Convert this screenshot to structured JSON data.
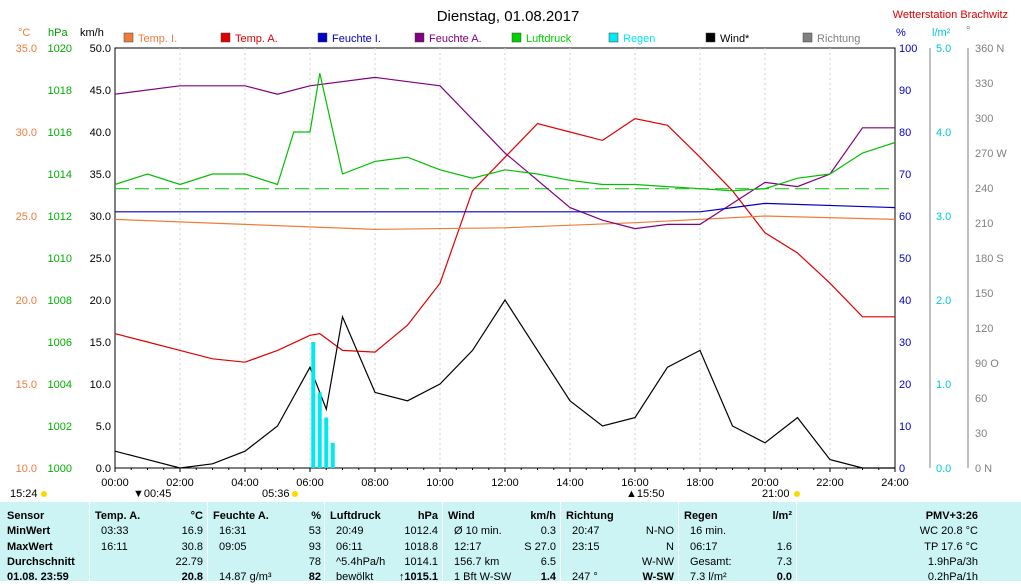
{
  "header": {
    "title": "Dienstag, 01.08.2017",
    "station": "Wetterstation Brachwitz"
  },
  "axes_units": {
    "temp": "°C",
    "pressure": "hPa",
    "wind": "km/h",
    "humidity": "%",
    "rain": "l/m²",
    "direction": "°"
  },
  "legend": [
    {
      "label": "Temp. I.",
      "color": "#f07c3c"
    },
    {
      "label": "Temp. A.",
      "color": "#e00000"
    },
    {
      "label": "Feuchte I.",
      "color": "#0000c8"
    },
    {
      "label": "Feuchte A.",
      "color": "#800080"
    },
    {
      "label": "Luftdruck",
      "color": "#00d000"
    },
    {
      "label": "Regen",
      "color": "#00e8f0"
    },
    {
      "label": "Wind*",
      "color": "#000000"
    },
    {
      "label": "Richtung",
      "color": "#808080"
    }
  ],
  "markers": {
    "start": "15:24",
    "sunrise": "05:36",
    "sunrise_prefix": "▼00:45",
    "transit": "▲15:50",
    "sunset": "21:00"
  },
  "chart_data": {
    "type": "line",
    "x_label_ticks": [
      "00:00",
      "02:00",
      "04:00",
      "06:00",
      "08:00",
      "10:00",
      "12:00",
      "14:00",
      "16:00",
      "18:00",
      "20:00",
      "22:00",
      "24:00"
    ],
    "xlim_hours": [
      0,
      24
    ],
    "y_axes": {
      "temp": {
        "range": [
          10,
          35
        ],
        "ticks": [
          "10.0",
          "15.0",
          "20.0",
          "25.0",
          "30.0",
          "35.0"
        ],
        "color": "#f07c3c"
      },
      "pressure": {
        "range": [
          1000,
          1020
        ],
        "ticks": [
          "1000",
          "1002",
          "1004",
          "1006",
          "1008",
          "1010",
          "1012",
          "1014",
          "1016",
          "1018",
          "1020"
        ],
        "color": "#00b000"
      },
      "wind": {
        "range": [
          0,
          50
        ],
        "ticks": [
          "0.0",
          "5.0",
          "10.0",
          "15.0",
          "20.0",
          "25.0",
          "30.0",
          "35.0",
          "40.0",
          "45.0",
          "50.0"
        ],
        "color": "#000000"
      },
      "humidity": {
        "range": [
          0,
          100
        ],
        "ticks": [
          "0",
          "10",
          "20",
          "30",
          "40",
          "50",
          "60",
          "70",
          "80",
          "90",
          "100"
        ],
        "color": "#0000c8"
      },
      "rain": {
        "range": [
          0,
          5
        ],
        "ticks": [
          "0.0",
          "1.0",
          "2.0",
          "3.0",
          "4.0",
          "5.0"
        ],
        "color": "#00c8d8"
      },
      "direction": {
        "range": [
          0,
          360
        ],
        "ticks": [
          "0 N",
          "30",
          "60",
          "90 O",
          "120",
          "150",
          "180 S",
          "210",
          "240",
          "270 W",
          "300",
          "330",
          "360 N"
        ],
        "color": "#808080"
      }
    },
    "series": [
      {
        "name": "Temp. A.",
        "axis": "temp",
        "color": "#e00000",
        "x": [
          0,
          1,
          2,
          3,
          4,
          5,
          6,
          6.3,
          7,
          8,
          9,
          10,
          11,
          12,
          13,
          14,
          15,
          16,
          17,
          18,
          19,
          20,
          21,
          22,
          23,
          24
        ],
        "y": [
          18,
          17.5,
          17,
          16.5,
          16.3,
          17,
          17.9,
          18,
          17,
          16.9,
          18.5,
          21,
          26.5,
          28.5,
          30.5,
          30,
          29.5,
          30.8,
          30.4,
          28.5,
          26.5,
          24,
          22.8,
          21,
          19,
          19
        ]
      },
      {
        "name": "Temp. I.",
        "axis": "temp",
        "color": "#f07c3c",
        "x": [
          0,
          4,
          8,
          12,
          16,
          20,
          24
        ],
        "y": [
          24.8,
          24.5,
          24.2,
          24.3,
          24.6,
          25,
          24.8
        ]
      },
      {
        "name": "Feuchte A.",
        "axis": "humidity",
        "color": "#800080",
        "x": [
          0,
          2,
          4,
          5,
          6,
          8,
          10,
          12,
          14,
          15,
          16,
          17,
          18,
          19,
          20,
          21,
          22,
          23,
          24
        ],
        "y": [
          89,
          91,
          91,
          89,
          91,
          93,
          91,
          75,
          62,
          59,
          57,
          58,
          58,
          63,
          68,
          67,
          70,
          81,
          81
        ]
      },
      {
        "name": "Feuchte I.",
        "axis": "humidity",
        "color": "#0000c8",
        "x": [
          0,
          12,
          18,
          19,
          20,
          24
        ],
        "y": [
          61,
          61,
          61,
          62,
          63,
          62
        ]
      },
      {
        "name": "Luftdruck",
        "axis": "pressure",
        "color": "#00c000",
        "x": [
          0,
          1,
          2,
          3,
          4,
          5,
          5.5,
          6,
          6.3,
          7,
          8,
          9,
          10,
          11,
          12,
          13,
          14,
          15,
          16,
          17,
          18,
          19,
          20,
          21,
          22,
          23,
          24
        ],
        "y": [
          1013.5,
          1014,
          1013.5,
          1014,
          1014,
          1013.5,
          1016,
          1016,
          1018.8,
          1014,
          1014.6,
          1014.8,
          1014.2,
          1013.8,
          1014.2,
          1014,
          1013.7,
          1013.5,
          1013.5,
          1013.4,
          1013.3,
          1013.2,
          1013.3,
          1013.8,
          1014,
          1015,
          1015.5
        ]
      },
      {
        "name": "Wind*",
        "axis": "wind",
        "color": "#000000",
        "x": [
          0,
          1,
          2,
          3,
          4,
          5,
          6,
          6.5,
          7,
          8,
          9,
          10,
          11,
          12,
          13,
          14,
          15,
          16,
          17,
          18,
          19,
          20,
          21,
          22,
          23,
          24
        ],
        "y": [
          2,
          1,
          0,
          0.5,
          2,
          5,
          12,
          7,
          18,
          9,
          8,
          10,
          14,
          20,
          14,
          8,
          5,
          6,
          12,
          14,
          5,
          3,
          6,
          1,
          0,
          0
        ]
      },
      {
        "name": "Regen",
        "axis": "rain",
        "color": "#00e8f0",
        "x": [
          6.1,
          6.3,
          6.5,
          6.7
        ],
        "y": [
          1.5,
          0.9,
          0.6,
          0.3
        ]
      }
    ]
  },
  "table": {
    "headers": [
      {
        "a": "Sensor",
        "b": ""
      },
      {
        "a": "Temp. A.",
        "b": "°C"
      },
      {
        "a": "Feuchte A.",
        "b": "%"
      },
      {
        "a": "Luftdruck",
        "b": "hPa"
      },
      {
        "a": "Wind",
        "b": "km/h"
      },
      {
        "a": "Richtung",
        "b": ""
      },
      {
        "a": "Regen",
        "b": "l/m²"
      },
      {
        "a": "",
        "b": "PMV+3:26"
      }
    ],
    "row_labels": [
      "MinWert",
      "MaxWert",
      "Durchschnitt",
      "01.08. 23:59"
    ],
    "rows": [
      [
        "03:33",
        "16.9",
        "16:31",
        "53",
        "20:49",
        "1012.4",
        "Ø 10 min.",
        "0.3",
        "20:47",
        "N-NO",
        "16 min.",
        "",
        "WC 20.8 °C"
      ],
      [
        "16:11",
        "30.8",
        "09:05",
        "93",
        "06:11",
        "1018.8",
        "12:17",
        "S 27.0",
        "23:15",
        "N",
        "06:17",
        "1.6",
        "TP 17.6 °C"
      ],
      [
        "",
        "22.79",
        "",
        "78",
        "^5.4hPa/h",
        "1014.1",
        "156.7 km",
        "6.5",
        "",
        "W-NW",
        "Gesamt:",
        "7.3",
        "1.9hPa/3h"
      ],
      [
        "",
        "20.8",
        "14.87 g/m³",
        "82",
        "bewölkt",
        "↑1015.1",
        "1 Bft W-SW",
        "1.4",
        "247 °",
        "W-SW",
        "7.3 l/m²",
        "0.0",
        "0.2hPa/1h"
      ]
    ]
  }
}
